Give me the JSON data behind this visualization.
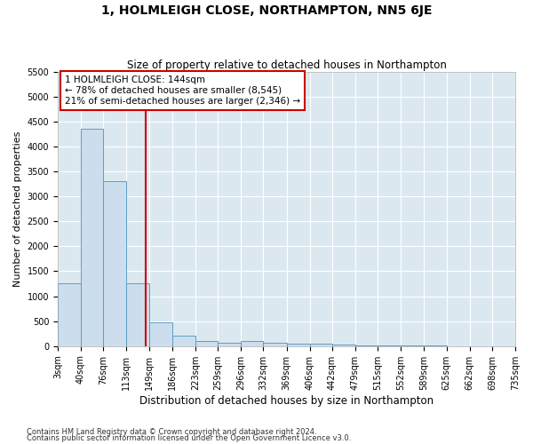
{
  "title": "1, HOLMLEIGH CLOSE, NORTHAMPTON, NN5 6JE",
  "subtitle": "Size of property relative to detached houses in Northampton",
  "xlabel": "Distribution of detached houses by size in Northampton",
  "ylabel": "Number of detached properties",
  "footnote1": "Contains HM Land Registry data © Crown copyright and database right 2024.",
  "footnote2": "Contains public sector information licensed under the Open Government Licence v3.0.",
  "annotation_line1": "1 HOLMLEIGH CLOSE: 144sqm",
  "annotation_line2": "← 78% of detached houses are smaller (8,545)",
  "annotation_line3": "21% of semi-detached houses are larger (2,346) →",
  "property_size": 144,
  "bar_edges": [
    3,
    40,
    76,
    113,
    149,
    186,
    223,
    259,
    296,
    332,
    369,
    406,
    442,
    479,
    515,
    552,
    589,
    625,
    662,
    698,
    735
  ],
  "bar_heights": [
    1250,
    4350,
    3300,
    1250,
    475,
    200,
    100,
    75,
    100,
    75,
    50,
    50,
    30,
    20,
    10,
    5,
    5,
    3,
    3,
    2
  ],
  "bar_color": "#ccdded",
  "bar_edge_color": "#5a9fc8",
  "red_line_color": "#cc0000",
  "annotation_box_color": "#cc0000",
  "background_color": "#dce8f0",
  "ylim": [
    0,
    5500
  ],
  "yticks": [
    0,
    500,
    1000,
    1500,
    2000,
    2500,
    3000,
    3500,
    4000,
    4500,
    5000,
    5500
  ],
  "title_fontsize": 10,
  "subtitle_fontsize": 8.5,
  "ylabel_fontsize": 8,
  "xlabel_fontsize": 8.5,
  "tick_fontsize": 7,
  "footnote_fontsize": 6,
  "annotation_fontsize": 7.5
}
